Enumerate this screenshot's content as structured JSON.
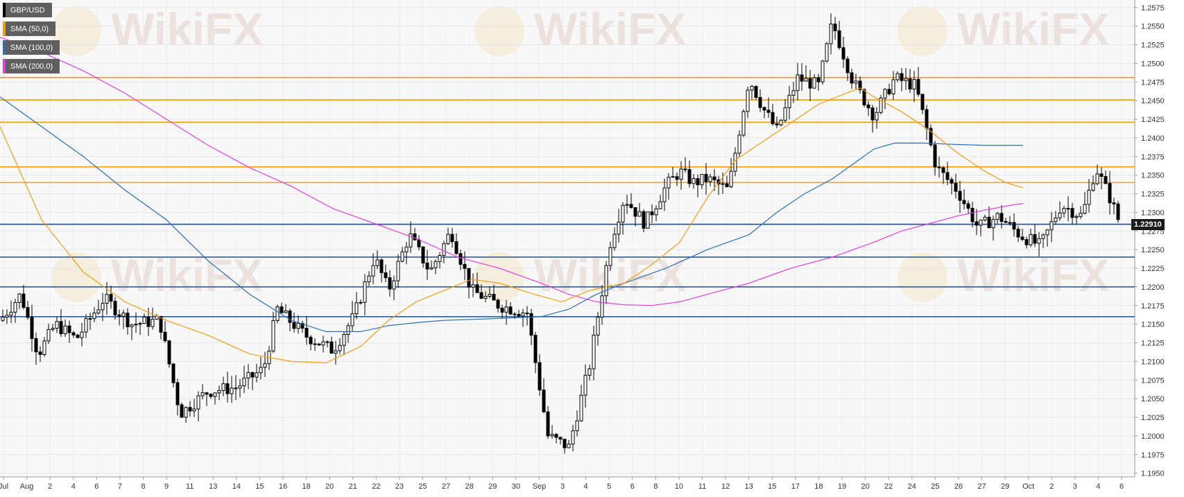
{
  "legend": [
    {
      "label": "GBP/USD",
      "color": "#000000"
    },
    {
      "label": "SMA (50,0)",
      "color": "#f39c12"
    },
    {
      "label": "SMA (100,0)",
      "color": "#2c6fb5"
    },
    {
      "label": "SMA (200,0)",
      "color": "#e040e0"
    }
  ],
  "watermark": "WikiFX",
  "last_price": "1.22910",
  "chart_data": {
    "type": "candlestick",
    "symbol": "GBP/USD",
    "ylim": [
      1.1945,
      1.2585
    ],
    "y_ticks": [
      "1.2575",
      "1.2550",
      "1.2525",
      "1.2500",
      "1.2475",
      "1.2450",
      "1.2425",
      "1.2400",
      "1.2375",
      "1.2350",
      "1.2325",
      "1.2300",
      "1.2275",
      "1.2250",
      "1.2225",
      "1.2200",
      "1.2175",
      "1.2150",
      "1.2125",
      "1.2100",
      "1.2075",
      "1.2050",
      "1.2025",
      "1.2000",
      "1.1975",
      "1.1950"
    ],
    "x_ticks": [
      "Jul",
      "Aug",
      "2",
      "4",
      "6",
      "7",
      "8",
      "9",
      "11",
      "13",
      "14",
      "15",
      "16",
      "18",
      "20",
      "21",
      "22",
      "23",
      "25",
      "27",
      "28",
      "29",
      "30",
      "Sep",
      "3",
      "4",
      "5",
      "6",
      "8",
      "10",
      "11",
      "12",
      "13",
      "15",
      "17",
      "18",
      "19",
      "20",
      "22",
      "24",
      "25",
      "26",
      "27",
      "29",
      "Oct",
      "2",
      "3",
      "4",
      "6"
    ],
    "resistance_levels": [
      1.2481,
      1.2451,
      1.2421,
      1.2361,
      1.234
    ],
    "support_levels": [
      1.2284,
      1.224,
      1.22,
      1.216
    ],
    "sma50": [
      [
        0,
        1.2415
      ],
      [
        60,
        1.229
      ],
      [
        120,
        1.222
      ],
      [
        180,
        1.218
      ],
      [
        240,
        1.2155
      ],
      [
        300,
        1.2135
      ],
      [
        360,
        1.211
      ],
      [
        420,
        1.21
      ],
      [
        470,
        1.2098
      ],
      [
        520,
        1.212
      ],
      [
        560,
        1.2155
      ],
      [
        600,
        1.218
      ],
      [
        640,
        1.2195
      ],
      [
        680,
        1.221
      ],
      [
        720,
        1.2205
      ],
      [
        770,
        1.219
      ],
      [
        810,
        1.218
      ],
      [
        850,
        1.2195
      ],
      [
        900,
        1.2205
      ],
      [
        940,
        1.223
      ],
      [
        980,
        1.226
      ],
      [
        1020,
        1.232
      ],
      [
        1060,
        1.237
      ],
      [
        1100,
        1.2395
      ],
      [
        1140,
        1.242
      ],
      [
        1180,
        1.2445
      ],
      [
        1220,
        1.246
      ],
      [
        1240,
        1.2467
      ],
      [
        1260,
        1.2455
      ],
      [
        1300,
        1.2435
      ],
      [
        1340,
        1.241
      ],
      [
        1380,
        1.238
      ],
      [
        1420,
        1.2355
      ],
      [
        1450,
        1.234
      ],
      [
        1475,
        1.2333
      ]
    ],
    "sma100": [
      [
        0,
        1.2455
      ],
      [
        60,
        1.2415
      ],
      [
        120,
        1.2375
      ],
      [
        180,
        1.233
      ],
      [
        240,
        1.229
      ],
      [
        300,
        1.2235
      ],
      [
        360,
        1.219
      ],
      [
        420,
        1.2155
      ],
      [
        470,
        1.214
      ],
      [
        520,
        1.214
      ],
      [
        560,
        1.2148
      ],
      [
        600,
        1.2152
      ],
      [
        640,
        1.2155
      ],
      [
        700,
        1.2157
      ],
      [
        780,
        1.216
      ],
      [
        820,
        1.217
      ],
      [
        860,
        1.219
      ],
      [
        900,
        1.2205
      ],
      [
        960,
        1.2225
      ],
      [
        1020,
        1.225
      ],
      [
        1080,
        1.227
      ],
      [
        1120,
        1.23
      ],
      [
        1160,
        1.2325
      ],
      [
        1200,
        1.2345
      ],
      [
        1230,
        1.2365
      ],
      [
        1260,
        1.2385
      ],
      [
        1290,
        1.2393
      ],
      [
        1330,
        1.2393
      ],
      [
        1380,
        1.2391
      ],
      [
        1420,
        1.239
      ],
      [
        1475,
        1.239
      ]
    ],
    "sma200": [
      [
        0,
        1.2535
      ],
      [
        60,
        1.2515
      ],
      [
        120,
        1.249
      ],
      [
        180,
        1.246
      ],
      [
        240,
        1.2425
      ],
      [
        300,
        1.239
      ],
      [
        360,
        1.236
      ],
      [
        420,
        1.2335
      ],
      [
        480,
        1.2305
      ],
      [
        540,
        1.2285
      ],
      [
        600,
        1.2265
      ],
      [
        660,
        1.224
      ],
      [
        720,
        1.2225
      ],
      [
        780,
        1.2205
      ],
      [
        820,
        1.219
      ],
      [
        860,
        1.218
      ],
      [
        900,
        1.2176
      ],
      [
        940,
        1.2175
      ],
      [
        980,
        1.218
      ],
      [
        1020,
        1.219
      ],
      [
        1080,
        1.2205
      ],
      [
        1140,
        1.2225
      ],
      [
        1200,
        1.224
      ],
      [
        1260,
        1.226
      ],
      [
        1300,
        1.2275
      ],
      [
        1340,
        1.2285
      ],
      [
        1380,
        1.2295
      ],
      [
        1420,
        1.2303
      ],
      [
        1460,
        1.231
      ],
      [
        1475,
        1.2312
      ]
    ],
    "grid": true,
    "legend_position": "top-left"
  }
}
